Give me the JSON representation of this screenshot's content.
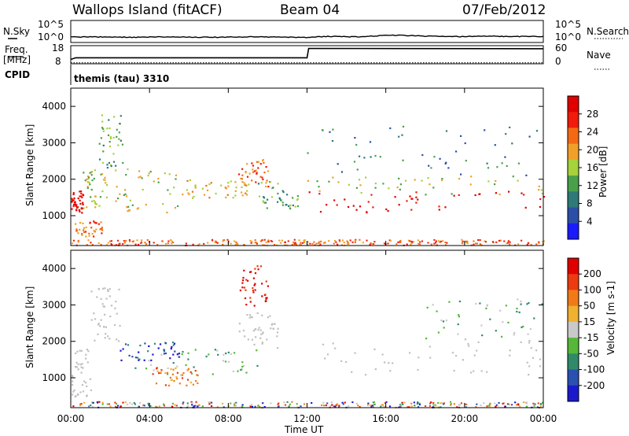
{
  "header": {
    "station": "Wallops Island (fitACF)",
    "beam": "Beam 04",
    "date": "07/Feb/2012"
  },
  "side_labels": {
    "n_sky": "N.Sky",
    "n_search": "N.Search",
    "freq_line1": "Freq.",
    "freq_line2": "[MHz]",
    "nave": "Nave",
    "cpid": "CPID",
    "cpid_value": "themis (tau) 3310"
  },
  "colors": {
    "power_scale": [
      "#1a1aff",
      "#2b4fa8",
      "#2e7a78",
      "#49a04b",
      "#a6d23a",
      "#f0a028",
      "#f46a14",
      "#f21a0a",
      "#e00000"
    ],
    "velocity_scale": [
      "#1a1acc",
      "#2a50b0",
      "#2f8a6a",
      "#55b838",
      "#c9c9c9",
      "#f0b030",
      "#f07a18",
      "#ee3a10",
      "#e00000"
    ],
    "ground_scatter": "#c0c0bc"
  },
  "chart_data": [
    {
      "type": "line",
      "title": "N.Sky / N.Search",
      "y_ticks": [
        "10^5",
        "10^0"
      ],
      "x": [
        "00:00",
        "01:00",
        "02:00",
        "03:00",
        "04:00",
        "05:00",
        "06:00",
        "07:00",
        "08:00",
        "09:00",
        "10:00",
        "11:00",
        "12:00",
        "13:00",
        "14:00",
        "15:00",
        "16:00",
        "17:00",
        "18:00",
        "19:00",
        "20:00",
        "21:00",
        "22:00",
        "23:00",
        "24:00"
      ],
      "series": [
        {
          "values": [
            10,
            12,
            10,
            9,
            10,
            11,
            10,
            9,
            10,
            12,
            10,
            9,
            8,
            15,
            12,
            13,
            30,
            28,
            18,
            15,
            14,
            18,
            16,
            15,
            14
          ]
        }
      ]
    },
    {
      "type": "line",
      "title": "Freq. / Nave",
      "y_left_ticks": [
        "18",
        "8"
      ],
      "y_right_ticks": [
        "60",
        "0"
      ],
      "series": [
        {
          "points": [
            [
              "00:00",
              10.4
            ],
            [
              "00:15",
              11.3
            ],
            [
              "12:00",
              11.3
            ],
            [
              "12:05",
              16.5
            ],
            [
              "24:00",
              16.3
            ]
          ]
        },
        {
          "points": [
            [
              "00:00",
              8.5
            ],
            [
              "24:00",
              8.5
            ]
          ],
          "style": "dotted"
        }
      ]
    },
    {
      "type": "heatmap",
      "title": "Power",
      "ylabel": "Slant Range [km]",
      "y_ticks": [
        1000,
        2000,
        3000,
        4000
      ],
      "ylim": [
        180,
        4500
      ],
      "xlim": [
        "00:00",
        "24:00"
      ],
      "colorbar_label": "Power [dB]",
      "colorbar_ticks": [
        4,
        8,
        12,
        16,
        20,
        24,
        28
      ],
      "regions": [
        {
          "t": [
            0.0,
            0.6
          ],
          "r": [
            1100,
            1700
          ],
          "level": 8
        },
        {
          "t": [
            0.2,
            1.6
          ],
          "r": [
            450,
            900
          ],
          "level": 6
        },
        {
          "t": [
            0.6,
            1.8
          ],
          "r": [
            1200,
            2300
          ],
          "level": 4
        },
        {
          "t": [
            1.4,
            2.6
          ],
          "r": [
            2300,
            3800
          ],
          "level": 3
        },
        {
          "t": [
            2.2,
            5.5
          ],
          "r": [
            1100,
            2300
          ],
          "level": 4
        },
        {
          "t": [
            5.5,
            9.0
          ],
          "r": [
            1500,
            2000
          ],
          "level": 5
        },
        {
          "t": [
            8.5,
            10.0
          ],
          "r": [
            1800,
            2600
          ],
          "level": 6
        },
        {
          "t": [
            9.5,
            11.5
          ],
          "r": [
            1200,
            2000
          ],
          "level": 3
        },
        {
          "t": [
            12.0,
            24.0
          ],
          "r": [
            1100,
            1700
          ],
          "level": 8
        },
        {
          "t": [
            12.0,
            24.0
          ],
          "r": [
            1600,
            2100
          ],
          "level": 4
        },
        {
          "t": [
            12.0,
            24.0
          ],
          "r": [
            2100,
            3500
          ],
          "level": 2
        }
      ]
    },
    {
      "type": "heatmap",
      "title": "Velocity",
      "ylabel": "Slant Range [km]",
      "y_ticks": [
        1000,
        2000,
        3000,
        4000
      ],
      "ylim": [
        180,
        4500
      ],
      "xlim": [
        "00:00",
        "24:00"
      ],
      "xlabel": "Time UT",
      "x_ticks": [
        "00:00",
        "04:00",
        "08:00",
        "12:00",
        "16:00",
        "20:00",
        "00:00"
      ],
      "colorbar_label": "Velocity [m s-1]",
      "colorbar_ticks": [
        200,
        100,
        50,
        15,
        -15,
        -50,
        -100,
        -200
      ],
      "regions": [
        {
          "t": [
            0.0,
            1.0
          ],
          "r": [
            500,
            1800
          ],
          "level": "ground"
        },
        {
          "t": [
            1.0,
            2.5
          ],
          "r": [
            2000,
            3500
          ],
          "level": "ground"
        },
        {
          "t": [
            2.3,
            5.5
          ],
          "r": [
            1500,
            2000
          ],
          "level": 1
        },
        {
          "t": [
            3.0,
            9.5
          ],
          "r": [
            1100,
            1800
          ],
          "level": 3
        },
        {
          "t": [
            4.0,
            6.5
          ],
          "r": [
            800,
            1300
          ],
          "level": 6
        },
        {
          "t": [
            8.5,
            10.5
          ],
          "r": [
            1800,
            2800
          ],
          "level": "ground"
        },
        {
          "t": [
            8.5,
            10.0
          ],
          "r": [
            3000,
            4100
          ],
          "level": 8
        },
        {
          "t": [
            12.0,
            24.0
          ],
          "r": [
            1100,
            2100
          ],
          "level": "ground"
        },
        {
          "t": [
            18.0,
            24.0
          ],
          "r": [
            2100,
            3200
          ],
          "level": 3
        }
      ]
    }
  ]
}
